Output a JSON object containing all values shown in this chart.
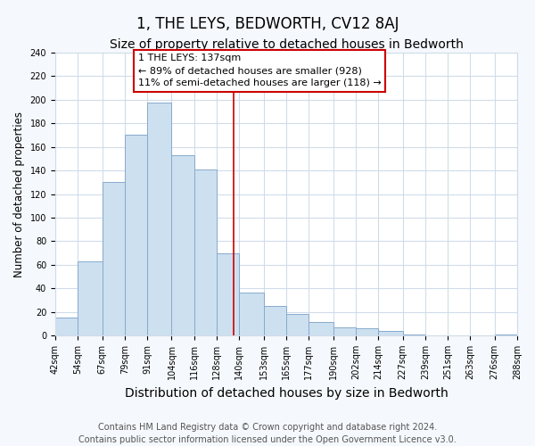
{
  "title": "1, THE LEYS, BEDWORTH, CV12 8AJ",
  "subtitle": "Size of property relative to detached houses in Bedworth",
  "xlabel": "Distribution of detached houses by size in Bedworth",
  "ylabel": "Number of detached properties",
  "bar_edges": [
    42,
    54,
    67,
    79,
    91,
    104,
    116,
    128,
    140,
    153,
    165,
    177,
    190,
    202,
    214,
    227,
    239,
    251,
    263,
    276,
    288
  ],
  "bar_heights": [
    15,
    63,
    130,
    170,
    198,
    153,
    141,
    70,
    36,
    25,
    18,
    11,
    7,
    6,
    4,
    1,
    0,
    0,
    0,
    1
  ],
  "bar_color": "#cde0f0",
  "bar_edge_color": "#88aacc",
  "property_line_x": 137,
  "annotation_line1": "1 THE LEYS: 137sqm",
  "annotation_line2": "← 89% of detached houses are smaller (928)",
  "annotation_line3": "11% of semi-detached houses are larger (118) →",
  "annotation_box_color": "#ffffff",
  "annotation_border_color": "#cc0000",
  "ylim": [
    0,
    240
  ],
  "yticks": [
    0,
    20,
    40,
    60,
    80,
    100,
    120,
    140,
    160,
    180,
    200,
    220,
    240
  ],
  "tick_labels": [
    "42sqm",
    "54sqm",
    "67sqm",
    "79sqm",
    "91sqm",
    "104sqm",
    "116sqm",
    "128sqm",
    "140sqm",
    "153sqm",
    "165sqm",
    "177sqm",
    "190sqm",
    "202sqm",
    "214sqm",
    "227sqm",
    "239sqm",
    "251sqm",
    "263sqm",
    "276sqm",
    "288sqm"
  ],
  "footer_line1": "Contains HM Land Registry data © Crown copyright and database right 2024.",
  "footer_line2": "Contains public sector information licensed under the Open Government Licence v3.0.",
  "background_color": "#f5f8fc",
  "plot_bg_color": "#ffffff",
  "grid_color": "#d0dcea",
  "vline_color": "#cc0000",
  "title_fontsize": 12,
  "subtitle_fontsize": 10,
  "xlabel_fontsize": 10,
  "ylabel_fontsize": 8.5,
  "tick_fontsize": 7,
  "footer_fontsize": 7
}
